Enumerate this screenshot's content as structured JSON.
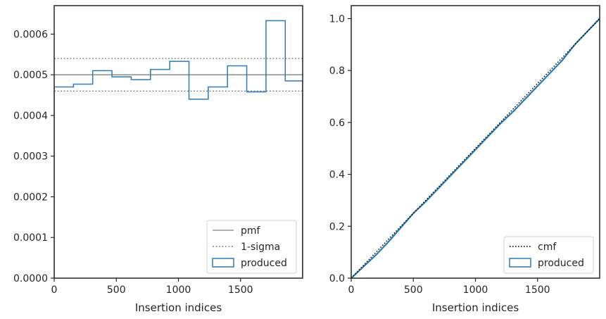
{
  "chart_data": [
    {
      "type": "line",
      "xlabel": "Insertion indices",
      "ylabel": "",
      "xlim": [
        0,
        2000
      ],
      "ylim": [
        0,
        0.00067
      ],
      "xticks": [
        "0",
        "500",
        "1000",
        "1500"
      ],
      "yticks": [
        "0.0000",
        "0.0001",
        "0.0002",
        "0.0003",
        "0.0004",
        "0.0005",
        "0.0006"
      ],
      "xtick_values": [
        0,
        500,
        1000,
        1500
      ],
      "ytick_values": [
        0,
        0.0001,
        0.0002,
        0.0003,
        0.0004,
        0.0005,
        0.0006
      ],
      "pmf": 0.0005,
      "sigma_bounds": [
        0.00046,
        0.00054
      ],
      "produced_bin_edges": [
        0,
        155,
        310,
        465,
        620,
        775,
        930,
        1085,
        1240,
        1395,
        1550,
        1705,
        1860,
        2000
      ],
      "produced_values": [
        0.00047,
        0.000477,
        0.00051,
        0.000495,
        0.000488,
        0.000513,
        0.000533,
        0.00044,
        0.00047,
        0.000522,
        0.000458,
        0.000633,
        0.000485
      ],
      "legend": [
        "pmf",
        "1-sigma",
        "produced"
      ],
      "legend_position": "lower-right",
      "colors": {
        "pmf": "#808080",
        "sigma": "#808080",
        "produced": "#2a7bb3"
      }
    },
    {
      "type": "line",
      "xlabel": "Insertion indices",
      "ylabel": "",
      "xlim": [
        0,
        2000
      ],
      "ylim": [
        0,
        1.05
      ],
      "xticks": [
        "0",
        "500",
        "1000",
        "1500"
      ],
      "yticks": [
        "0.0",
        "0.2",
        "0.4",
        "0.6",
        "0.8",
        "1.0"
      ],
      "xtick_values": [
        0,
        500,
        1000,
        1500
      ],
      "ytick_values": [
        0,
        0.2,
        0.4,
        0.6,
        0.8,
        1.0
      ],
      "cmf": {
        "x": [
          0,
          2000
        ],
        "y": [
          0,
          1.0
        ]
      },
      "produced": {
        "x": [
          0,
          100,
          200,
          300,
          400,
          500,
          600,
          700,
          800,
          900,
          1000,
          1100,
          1200,
          1300,
          1400,
          1500,
          1600,
          1700,
          1800,
          1900,
          2000
        ],
        "y": [
          0,
          0.045,
          0.09,
          0.14,
          0.195,
          0.25,
          0.295,
          0.345,
          0.395,
          0.445,
          0.495,
          0.545,
          0.595,
          0.64,
          0.69,
          0.74,
          0.79,
          0.84,
          0.9,
          0.95,
          1.0
        ]
      },
      "legend": [
        "cmf",
        "produced"
      ],
      "legend_position": "lower-right",
      "colors": {
        "cmf": "#000000",
        "produced": "#2a7bb3"
      }
    }
  ]
}
